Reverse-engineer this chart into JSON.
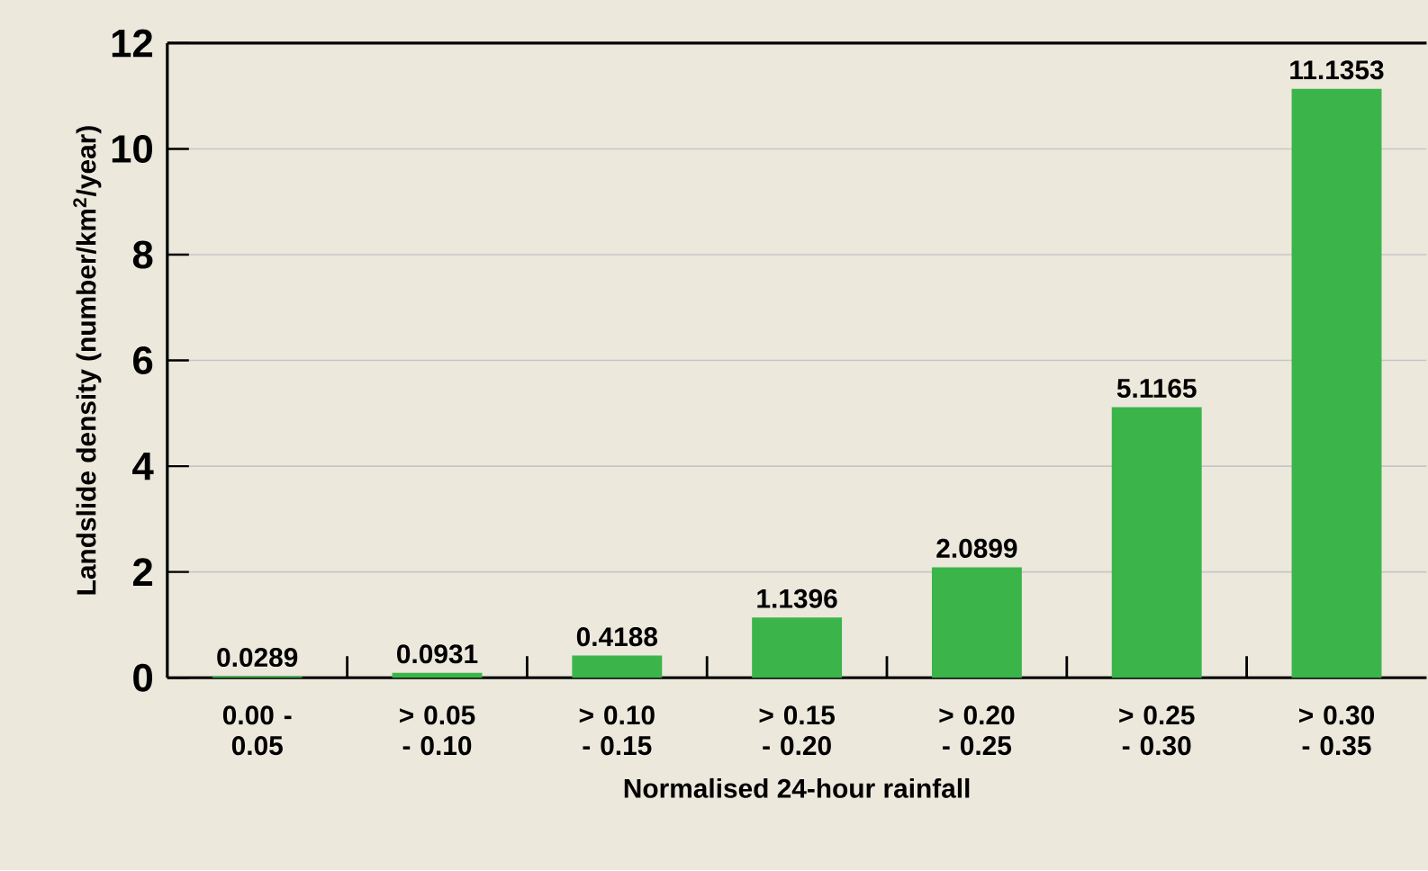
{
  "chart_data": {
    "type": "bar",
    "xlabel": "Normalised 24-hour rainfall",
    "ylabel": "Landslide density (number/km$^{2}$/year)",
    "categories": [
      "0.00 - 0.05",
      "> 0.05 - 0.10",
      "> 0.10 - 0.15",
      "> 0.15 - 0.20",
      "> 0.20 - 0.25",
      "> 0.25 - 0.30",
      "> 0.30 - 0.35"
    ],
    "values": [
      0.0289,
      0.0931,
      0.4188,
      1.1396,
      2.0899,
      5.1165,
      11.1353
    ],
    "color": "#3bb54a",
    "ylim": [
      0,
      12
    ],
    "yticks": [
      0,
      2,
      4,
      6,
      8,
      10,
      12
    ],
    "grid": "y",
    "data_labels": true
  }
}
